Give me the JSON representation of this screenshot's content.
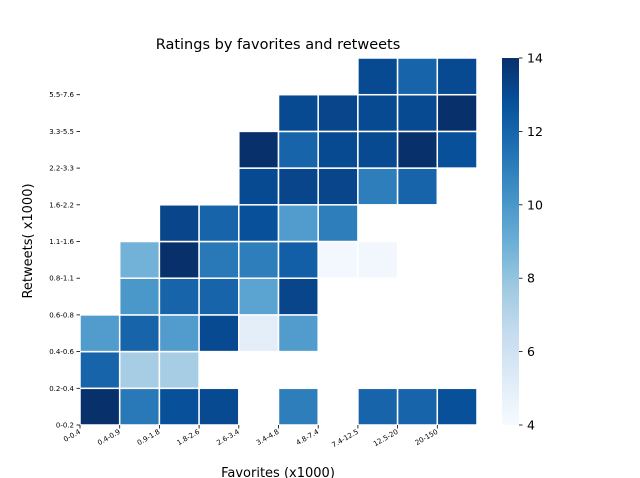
{
  "chart_data": {
    "type": "heatmap",
    "title": "Ratings by favorites and retweets",
    "xlabel": "Favorites (x1000)",
    "ylabel": "Retweets( x1000)",
    "x_categories": [
      "0-0.4",
      "0.4-0.9",
      "0.9-1.8",
      "1.8-2.6",
      "2.6-3.4",
      "3.4-4.8",
      "4.8-7.4",
      "7.4-12.5",
      "12.5-20",
      "20-150"
    ],
    "y_categories": [
      "0-0.2",
      "0.2-0.4",
      "0.4-0.6",
      "0.6-0.8",
      "0.8-1.1",
      "1.1-1.6",
      "1.6-2.2",
      "2.2-3.3",
      "3.3-5.5",
      "5.5-7.6"
    ],
    "y_categories_order": "bottom-to-top",
    "values": [
      [
        14.0,
        11.2,
        12.8,
        13.0,
        null,
        11.0,
        null,
        12.0,
        12.0,
        12.8
      ],
      [
        12.0,
        7.5,
        7.5,
        null,
        null,
        null,
        null,
        null,
        null,
        null
      ],
      [
        9.8,
        12.0,
        9.8,
        13.0,
        5.0,
        9.8,
        null,
        null,
        null,
        null
      ],
      [
        null,
        10.0,
        12.0,
        12.0,
        9.5,
        13.2,
        null,
        null,
        null,
        null
      ],
      [
        null,
        8.8,
        14.0,
        11.2,
        11.0,
        12.2,
        4.2,
        4.3,
        null,
        null
      ],
      [
        null,
        null,
        13.2,
        12.0,
        12.8,
        9.8,
        11.0,
        null,
        null,
        null
      ],
      [
        null,
        null,
        null,
        null,
        13.0,
        13.2,
        13.2,
        11.0,
        12.0,
        null
      ],
      [
        null,
        null,
        null,
        null,
        14.0,
        12.0,
        13.0,
        13.0,
        14.0,
        12.8
      ],
      [
        null,
        null,
        null,
        null,
        null,
        13.0,
        13.2,
        13.0,
        13.0,
        14.0
      ],
      [
        null,
        null,
        null,
        null,
        null,
        null,
        null,
        13.0,
        12.0,
        13.0
      ]
    ],
    "colorbar": {
      "min": 4,
      "max": 14,
      "ticks": [
        4,
        6,
        8,
        10,
        12,
        14
      ],
      "colormap": "Blues"
    },
    "grid": false
  }
}
